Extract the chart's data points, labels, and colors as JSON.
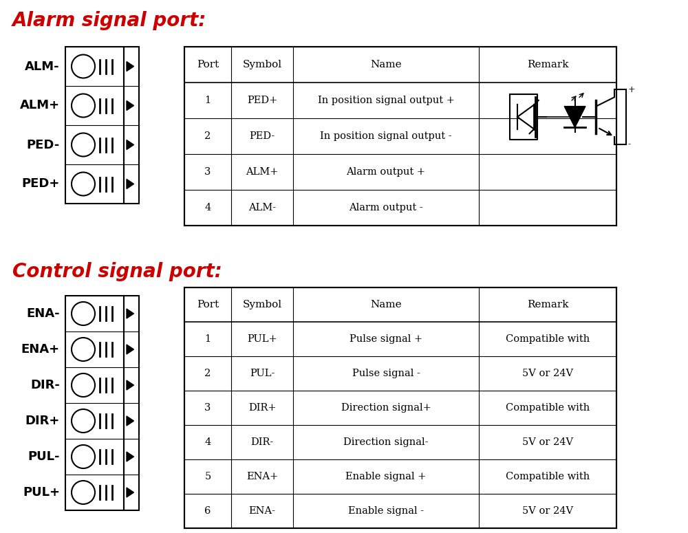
{
  "bg_color": "#ffffff",
  "title1": "Alarm signal port:",
  "title2": "Control signal port:",
  "title_color": "#cc0000",
  "title_fontsize": 20,
  "alarm_labels": [
    "ALM-",
    "ALM+",
    "PED-",
    "PED+"
  ],
  "control_labels": [
    "ENA-",
    "ENA+",
    "DIR-",
    "DIR+",
    "PUL-",
    "PUL+"
  ],
  "alarm_table_headers": [
    "Port",
    "Symbol",
    "Name",
    "Remark"
  ],
  "alarm_table_rows": [
    [
      "1",
      "PED+",
      "In position signal output +",
      ""
    ],
    [
      "2",
      "PED-",
      "In position signal output -",
      ""
    ],
    [
      "3",
      "ALM+",
      "Alarm output +",
      ""
    ],
    [
      "4",
      "ALM-",
      "Alarm output -",
      ""
    ]
  ],
  "control_table_headers": [
    "Port",
    "Symbol",
    "Name",
    "Remark"
  ],
  "control_table_rows": [
    [
      "1",
      "PUL+",
      "Pulse signal +",
      "Compatible with"
    ],
    [
      "2",
      "PUL-",
      "Pulse signal -",
      "5V or 24V"
    ],
    [
      "3",
      "DIR+",
      "Direction signal+",
      "Compatible with"
    ],
    [
      "4",
      "DIR-",
      "Direction signal-",
      "5V or 24V"
    ],
    [
      "5",
      "ENA+",
      "Enable signal +",
      "Compatible with"
    ],
    [
      "6",
      "ENA-",
      "Enable signal -",
      "5V or 24V"
    ]
  ],
  "table_fontsize": 10.5,
  "label_fontsize": 13
}
